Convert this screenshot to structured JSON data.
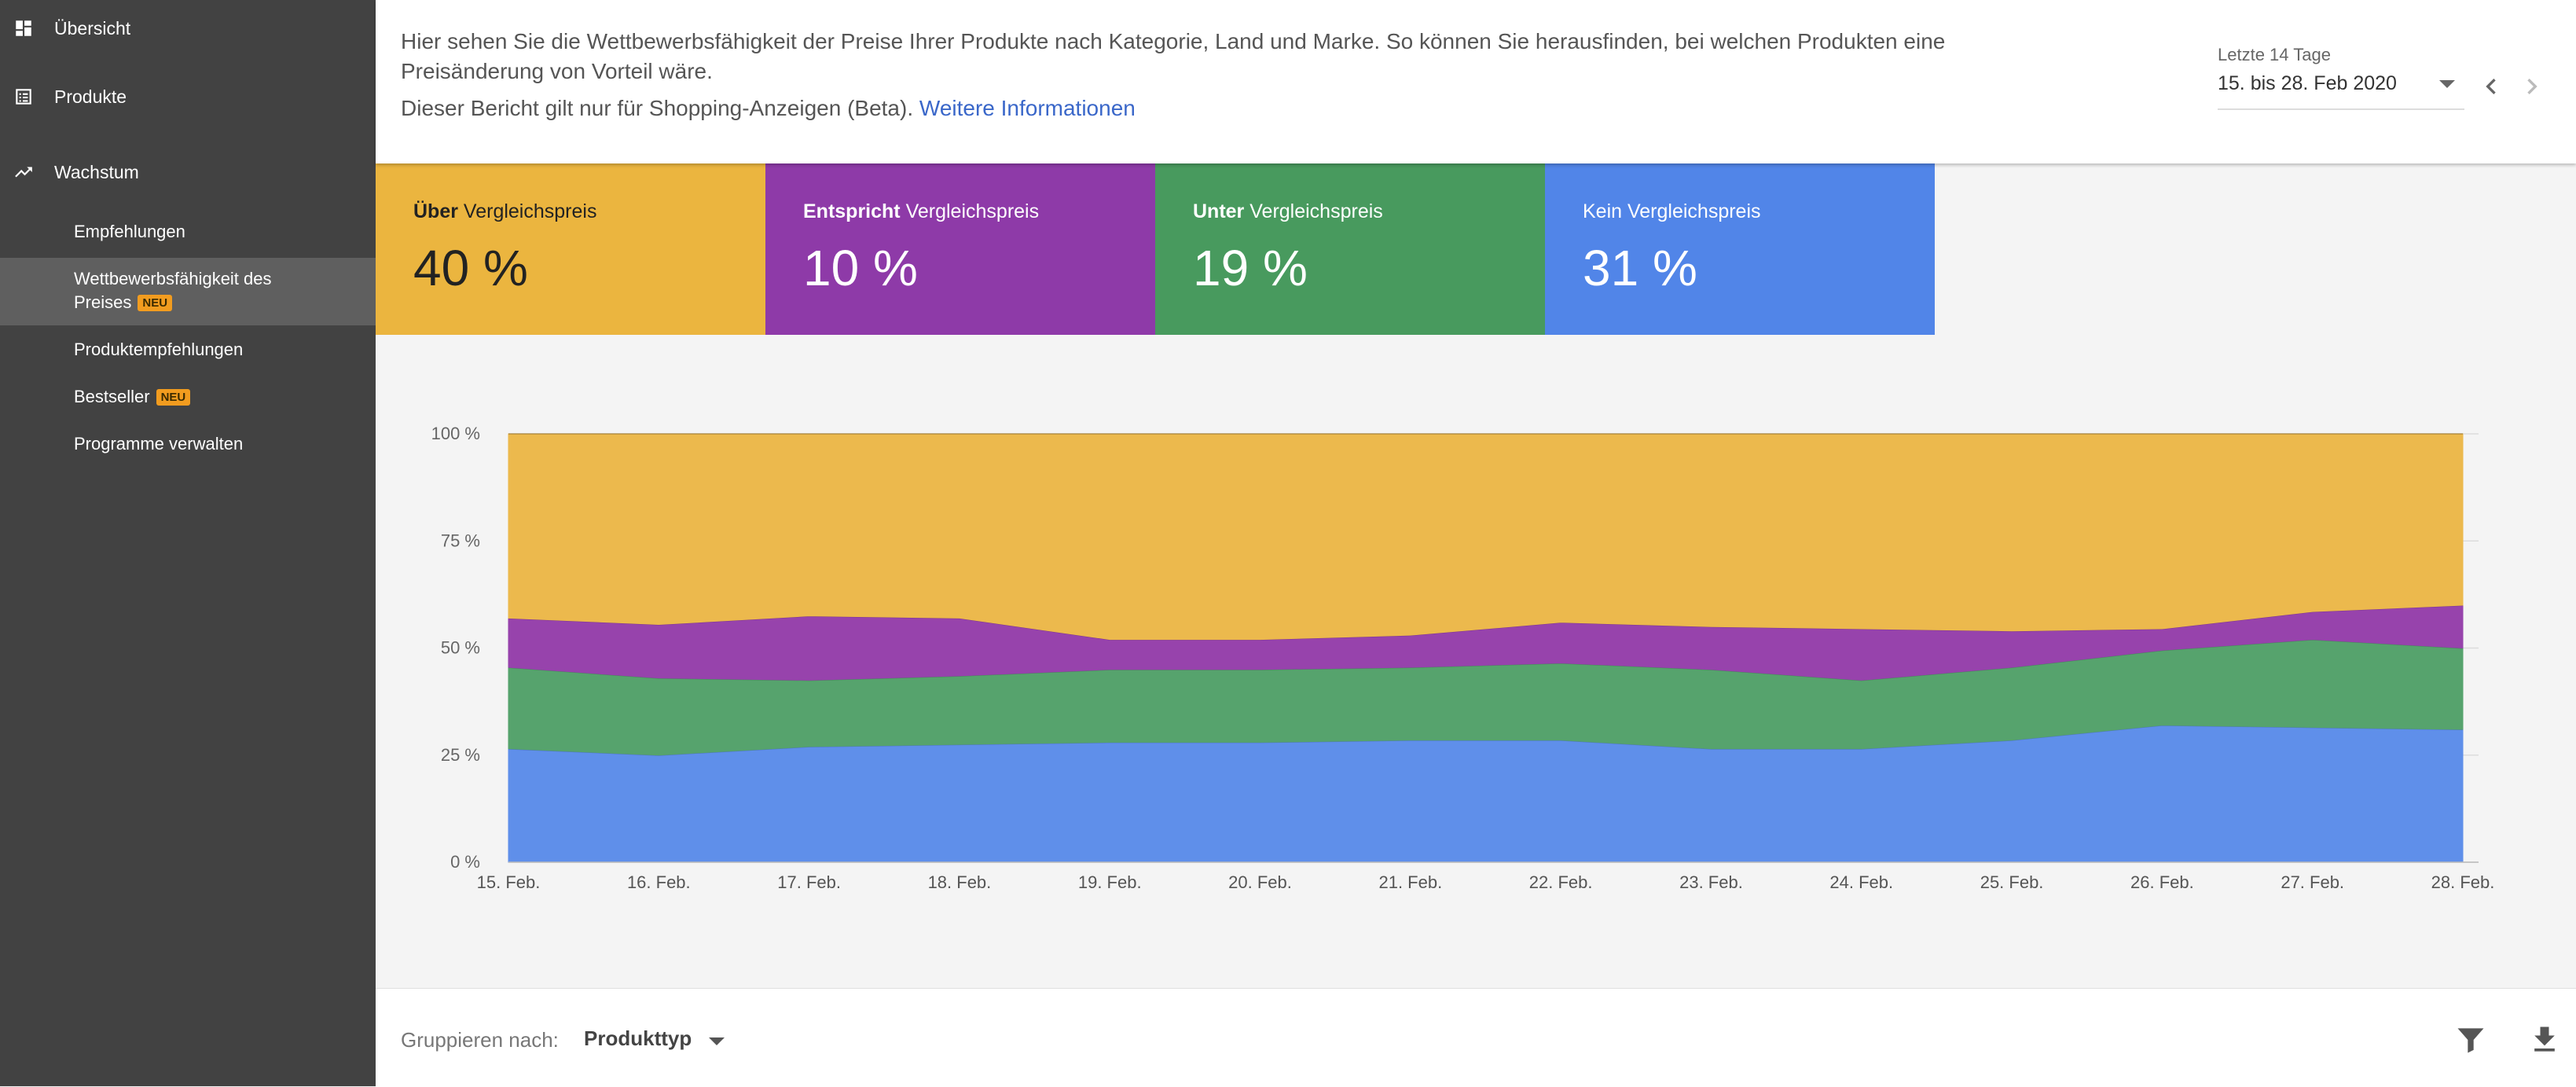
{
  "sidebar": {
    "top_items": [
      {
        "label": "Übersicht",
        "icon": "dashboard-icon"
      },
      {
        "label": "Produkte",
        "icon": "list-icon"
      },
      {
        "label": "Wachstum",
        "icon": "trending-up-icon"
      }
    ],
    "sub_items": [
      {
        "label": "Empfehlungen"
      },
      {
        "label_line1": "Wettbewerbsfähigkeit des",
        "label_line2": "Preises",
        "badge": "NEU",
        "active": true
      },
      {
        "label": "Produktempfehlungen"
      },
      {
        "label": "Bestseller",
        "badge": "NEU"
      },
      {
        "label": "Programme verwalten"
      }
    ]
  },
  "header": {
    "description": "Hier sehen Sie die Wettbewerbsfähigkeit der Preise Ihrer Produkte nach Kategorie, Land und Marke. So können Sie herausfinden, bei welchen Produkten eine Preisänderung von Vorteil wäre.",
    "beta_note": "Dieser Bericht gilt nur für Shopping-Anzeigen (Beta).",
    "more_info_link": "Weitere Informationen",
    "range_label": "Letzte 14 Tage",
    "range_value": "15. bis 28. Feb 2020"
  },
  "scorecards": [
    {
      "bold": "Über",
      "rest": " Vergleichspreis",
      "value": "40 %",
      "color": "#ebb53f",
      "text_color": "#222"
    },
    {
      "bold": "Entspricht",
      "rest": " Vergleichspreis",
      "value": "10 %",
      "color": "#8e3aa8",
      "text_color": "#fff"
    },
    {
      "bold": "Unter",
      "rest": " Vergleichspreis",
      "value": "19 %",
      "color": "#489a5e",
      "text_color": "#fff"
    },
    {
      "bold": "",
      "rest": "Kein Vergleichspreis",
      "value": "31 %",
      "color": "#5185e8",
      "text_color": "#fff"
    }
  ],
  "chart_data": {
    "type": "area",
    "stacked": true,
    "categories": [
      "15. Feb.",
      "16. Feb.",
      "17. Feb.",
      "18. Feb.",
      "19. Feb.",
      "20. Feb.",
      "21. Feb.",
      "22. Feb.",
      "23. Feb.",
      "24. Feb.",
      "25. Feb.",
      "26. Feb.",
      "27. Feb.",
      "28. Feb."
    ],
    "y_ticks": [
      "0 %",
      "25 %",
      "50 %",
      "75 %",
      "100 %"
    ],
    "ylim": [
      0,
      100
    ],
    "grid": true,
    "series": [
      {
        "color": "#5f8fea",
        "values": [
          26.5,
          25,
          27,
          27.5,
          28,
          28,
          28.5,
          28.5,
          26.5,
          26.5,
          28.5,
          32,
          31.5,
          31
        ]
      },
      {
        "color": "#56a36d",
        "values": [
          19,
          18,
          15.5,
          16,
          17,
          17,
          17,
          18,
          18.5,
          16,
          17,
          17.5,
          20.5,
          19
        ]
      },
      {
        "color": "#9743ac",
        "values": [
          11.5,
          12.5,
          15,
          13.5,
          7,
          7,
          7.5,
          9.5,
          10,
          12,
          8.5,
          5,
          6.5,
          10
        ]
      },
      {
        "color": "#ecb94d",
        "values": [
          43,
          44.5,
          42.5,
          43,
          48,
          48,
          47,
          44,
          45,
          45.5,
          46,
          45.5,
          41.5,
          40
        ]
      }
    ]
  },
  "footer": {
    "group_label": "Gruppieren nach:",
    "group_value": "Produkttyp"
  }
}
